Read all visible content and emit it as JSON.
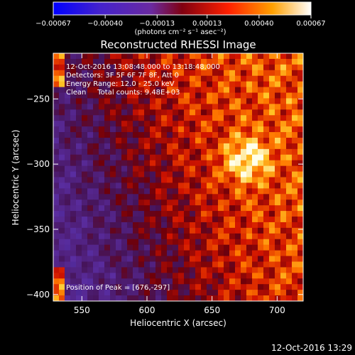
{
  "chart_data": {
    "type": "heatmap",
    "title": "Reconstructed RHESSI Image",
    "xlabel": "Heliocentric X (arcsec)",
    "ylabel": "Heliocentric Y (arcsec)",
    "xlim": [
      528,
      720
    ],
    "ylim": [
      -405,
      -215
    ],
    "xticks": [
      550,
      600,
      650,
      700
    ],
    "yticks": [
      -400,
      -350,
      -300,
      -250
    ],
    "xtick_labels": [
      "550",
      "600",
      "650",
      "700"
    ],
    "ytick_labels": [
      "−400",
      "−350",
      "−300",
      "−250"
    ],
    "colorbar": {
      "range": [
        -0.00067,
        0.00067
      ],
      "ticks": [
        -0.00067,
        -0.0004,
        -0.00013,
        0.00013,
        0.0004,
        0.00067
      ],
      "tick_labels": [
        "−0.00067",
        "−0.00040",
        "−0.00013",
        "0.00013",
        "0.00040",
        "0.00067"
      ],
      "units": "(photons cm⁻² s⁻¹ asec⁻²)",
      "colormap": "blue-purple-red-yellow-white"
    },
    "peak": [
      676,
      -297
    ],
    "grid": false
  },
  "annotations": {
    "time_range": "12-Oct-2016 13:08:48.000 to 13:18:48.000",
    "detectors": "Detectors: 3F 5F 6F 7F 8F, Att 0",
    "energy_range": "Energy Range: 12.0 - 25.0 keV",
    "method_counts": "Clean     Total counts: 9.48E+03",
    "peak_position": "Position of Peak = [676,-297]"
  },
  "footer": {
    "timestamp": "12-Oct-2016 13:29"
  }
}
